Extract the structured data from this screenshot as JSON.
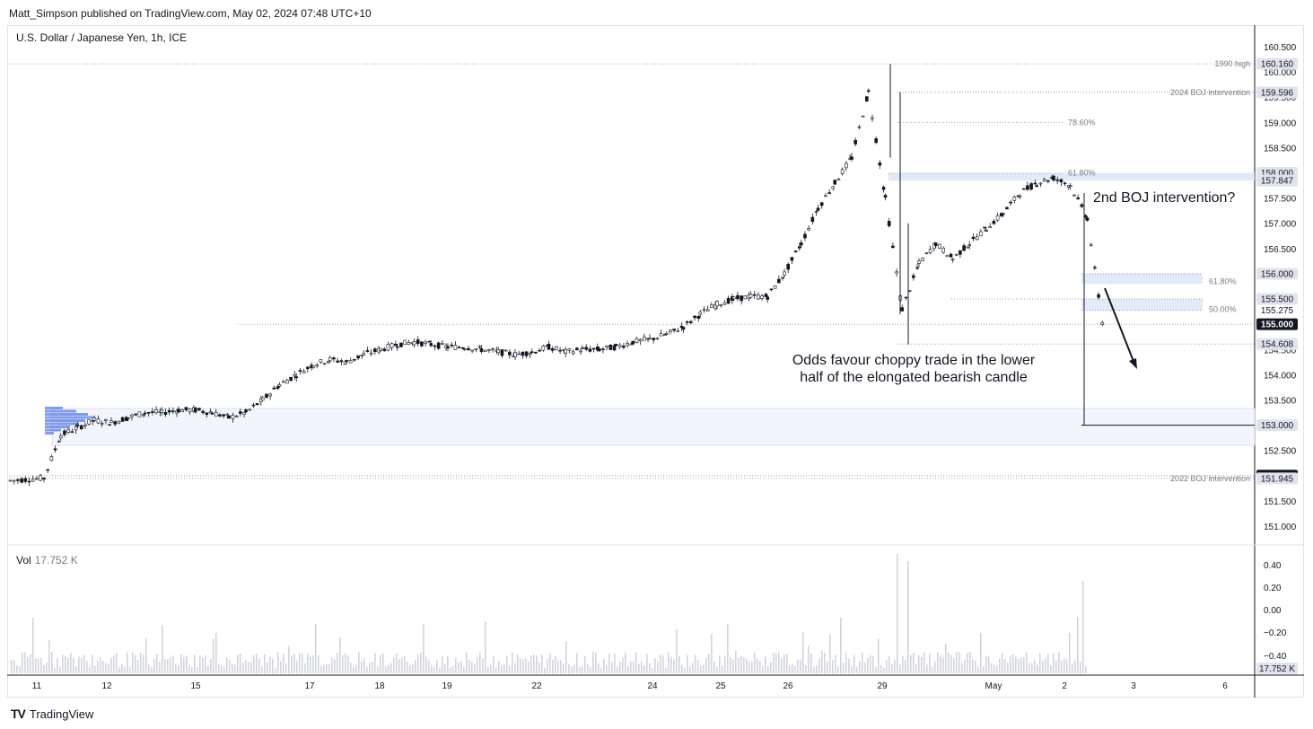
{
  "header": "Matt_Simpson published on TradingView.com, May 02, 2024 07:48 UTC+10",
  "symbol": "U.S. Dollar / Japanese Yen, 1h, ICE",
  "volume_label": "Vol",
  "volume_value": "17.752 K",
  "footer": "TradingView",
  "annotations": {
    "boj2": "2nd BOJ intervention?",
    "odds_line1": "Odds favour choppy trade in the lower",
    "odds_line2": "half of the elongated bearish candle"
  },
  "colors": {
    "up": "#131722",
    "down": "#131722",
    "zone": "#dbe3f5",
    "volume": "#d1d4dc",
    "profile": "#4d73e0"
  },
  "chart_data": {
    "type": "candlestick",
    "title": "U.S. Dollar / Japanese Yen, 1h, ICE",
    "price_axis": {
      "ticks": [
        160.5,
        160.0,
        159.5,
        159.0,
        158.5,
        158.0,
        157.5,
        157.0,
        156.5,
        156.0,
        155.5,
        155.0,
        154.5,
        154.0,
        153.5,
        153.0,
        152.5,
        152.0,
        151.5,
        151.0
      ],
      "tick_labels": [
        "160.500",
        "160.000",
        "159.500",
        "159.000",
        "158.500",
        "158.000",
        "157.500",
        "157.000",
        "156.500",
        "156.000",
        "155.500",
        "155.000",
        "154.500",
        "154.000",
        "153.500",
        "153.000",
        "152.500",
        "152.000",
        "151.500",
        "151.000"
      ],
      "range": [
        150.6,
        160.75
      ]
    },
    "time_axis": {
      "labels": [
        "11",
        "12",
        "15",
        "17",
        "18",
        "19",
        "22",
        "24",
        "25",
        "26",
        "29",
        "May",
        "2",
        "3",
        "6"
      ]
    },
    "key_levels": [
      {
        "label": "1990 high",
        "value": "160.160",
        "highlight": false
      },
      {
        "label": "2024 BOJ intervention",
        "value": "159.596",
        "highlight": false
      },
      {
        "label": "78.60%",
        "value": "",
        "highlight": false
      },
      {
        "label": "61.80%",
        "value": "158.000",
        "highlight": false
      },
      {
        "label": "",
        "value": "157.847",
        "highlight": false
      },
      {
        "label": "",
        "value": "156.000",
        "highlight": false
      },
      {
        "label": "61.80%",
        "value": "",
        "highlight": false
      },
      {
        "label": "",
        "value": "155.500",
        "highlight": false
      },
      {
        "label": "",
        "value": "155.275",
        "highlight": false
      },
      {
        "label": "50.00%",
        "value": "",
        "highlight": false
      },
      {
        "label": "",
        "value": "155.000",
        "highlight": true
      },
      {
        "label": "",
        "value": "154.608",
        "highlight": false
      },
      {
        "label": "",
        "value": "153.000",
        "highlight": false
      },
      {
        "label": "",
        "value": "152.000",
        "highlight": true
      },
      {
        "label": "2022 BOJ intervention",
        "value": "151.945",
        "highlight": false
      }
    ],
    "path_points": [
      [
        0,
        151.9
      ],
      [
        2,
        151.95
      ],
      [
        3,
        152.8
      ],
      [
        4,
        152.95
      ],
      [
        5,
        153.1
      ],
      [
        6,
        153.05
      ],
      [
        7,
        153.15
      ],
      [
        8,
        153.25
      ],
      [
        9,
        153.25
      ],
      [
        10,
        153.3
      ],
      [
        11,
        153.3
      ],
      [
        12,
        153.25
      ],
      [
        13,
        153.15
      ],
      [
        14,
        153.25
      ],
      [
        15,
        153.5
      ],
      [
        16,
        153.8
      ],
      [
        17,
        154.0
      ],
      [
        18,
        154.2
      ],
      [
        19,
        154.3
      ],
      [
        20,
        154.25
      ],
      [
        21,
        154.4
      ],
      [
        22,
        154.5
      ],
      [
        23,
        154.6
      ],
      [
        24,
        154.65
      ],
      [
        25,
        154.6
      ],
      [
        26,
        154.55
      ],
      [
        27,
        154.55
      ],
      [
        28,
        154.5
      ],
      [
        29,
        154.45
      ],
      [
        30,
        154.4
      ],
      [
        31,
        154.45
      ],
      [
        32,
        154.55
      ],
      [
        33,
        154.45
      ],
      [
        34,
        154.5
      ],
      [
        35,
        154.5
      ],
      [
        36,
        154.55
      ],
      [
        37,
        154.65
      ],
      [
        38,
        154.7
      ],
      [
        39,
        154.8
      ],
      [
        40,
        154.95
      ],
      [
        41,
        155.2
      ],
      [
        42,
        155.4
      ],
      [
        43,
        155.5
      ],
      [
        44,
        155.55
      ],
      [
        45,
        155.55
      ],
      [
        46,
        156.0
      ],
      [
        47,
        156.6
      ],
      [
        48,
        157.3
      ],
      [
        49,
        157.8
      ],
      [
        50,
        158.3
      ],
      [
        51,
        159.6
      ],
      [
        52,
        157.5
      ],
      [
        53,
        155.3
      ],
      [
        54,
        156.2
      ],
      [
        55,
        156.6
      ],
      [
        56,
        156.3
      ],
      [
        57,
        156.6
      ],
      [
        58,
        156.9
      ],
      [
        59,
        157.2
      ],
      [
        60,
        157.6
      ],
      [
        61,
        157.8
      ],
      [
        62,
        157.9
      ],
      [
        63,
        157.75
      ],
      [
        64,
        157.1
      ],
      [
        65,
        154.8
      ]
    ],
    "candles": {
      "count": 66,
      "x_start": 10,
      "x_end": 1210
    },
    "volume": {
      "ticks": [
        0.4,
        0.2,
        0.0,
        -0.2,
        -0.4
      ],
      "tick_labels": [
        "0.40",
        "0.20",
        "0.00",
        "−0.20",
        "−0.40"
      ],
      "last_value": "17.752 K"
    }
  }
}
